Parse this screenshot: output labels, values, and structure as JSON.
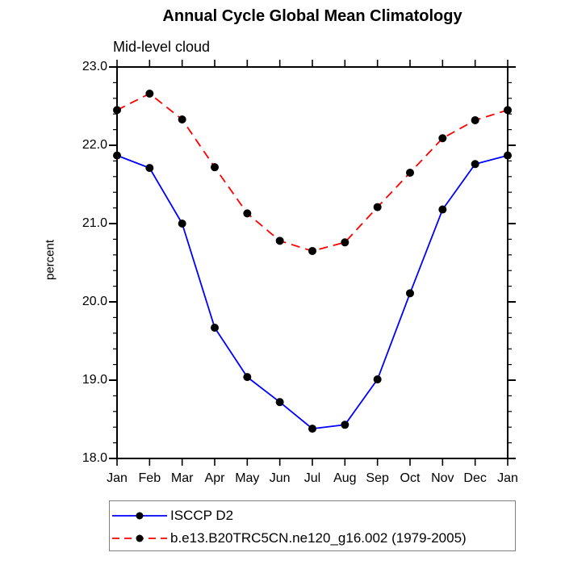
{
  "chart_data": {
    "type": "line",
    "title": "Annual Cycle Global Mean Climatology",
    "subtitle": "Mid-level cloud",
    "ylabel": "percent",
    "xlabel": "",
    "ylim": [
      18.0,
      23.0
    ],
    "y_major_tick_step": 1.0,
    "y_minor_tick_step": 0.2,
    "y_tick_labels": [
      "23.0",
      "22.0",
      "21.0",
      "20.0",
      "19.0",
      "18.0"
    ],
    "grid": false,
    "axis_color": "#000000",
    "marker_color": "#000000",
    "legend_position": "bottom-left",
    "categories": [
      "Jan",
      "Feb",
      "Mar",
      "Apr",
      "May",
      "Jun",
      "Jul",
      "Aug",
      "Sep",
      "Oct",
      "Nov",
      "Dec",
      "Jan"
    ],
    "series": [
      {
        "name": "ISCCP D2",
        "color": "#0000ff",
        "line_style": "solid",
        "marker": "filled-black-circle",
        "values": [
          21.87,
          21.71,
          21.0,
          19.67,
          19.04,
          18.72,
          18.38,
          18.43,
          19.01,
          20.11,
          21.18,
          21.76,
          21.87
        ]
      },
      {
        "name": "b.e13.B20TRC5CN.ne120_g16.002 (1979-2005)",
        "color": "#ff0000",
        "line_style": "dashed",
        "marker": "filled-black-circle",
        "values": [
          22.45,
          22.66,
          22.33,
          21.72,
          21.13,
          20.78,
          20.65,
          20.76,
          21.21,
          21.65,
          22.09,
          22.32,
          22.45
        ]
      }
    ]
  }
}
